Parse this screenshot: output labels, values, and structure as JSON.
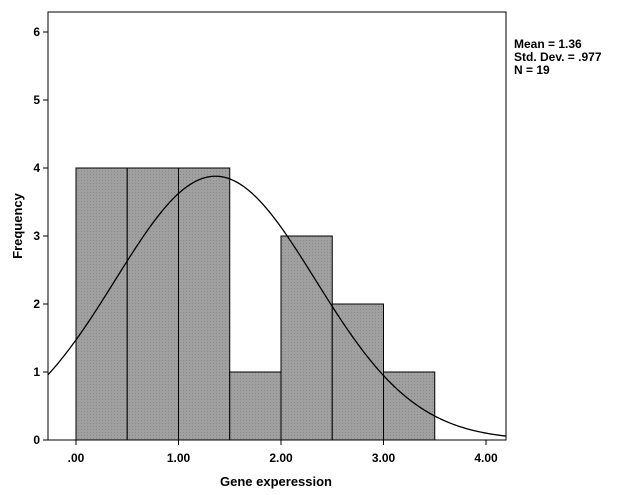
{
  "chart_data": {
    "type": "bar",
    "subtype": "histogram",
    "title": "",
    "xlabel": "Gene experession",
    "ylabel": "Frequency",
    "bins": [
      {
        "start": 0.0,
        "end": 0.5,
        "count": 4
      },
      {
        "start": 0.5,
        "end": 1.0,
        "count": 4
      },
      {
        "start": 1.0,
        "end": 1.5,
        "count": 4
      },
      {
        "start": 1.5,
        "end": 2.0,
        "count": 1
      },
      {
        "start": 2.0,
        "end": 2.5,
        "count": 3
      },
      {
        "start": 2.5,
        "end": 3.0,
        "count": 2
      },
      {
        "start": 3.0,
        "end": 3.5,
        "count": 1
      }
    ],
    "x_ticks": [
      {
        "value": 0,
        "label": ".00"
      },
      {
        "value": 1,
        "label": "1.00"
      },
      {
        "value": 2,
        "label": "2.00"
      },
      {
        "value": 3,
        "label": "3.00"
      },
      {
        "value": 4,
        "label": "4.00"
      }
    ],
    "y_ticks": [
      0,
      1,
      2,
      3,
      4,
      5,
      6
    ],
    "xlim": [
      -0.28,
      4.2
    ],
    "ylim": [
      0,
      6.3
    ],
    "normal_curve": {
      "mean": 1.36,
      "sd": 0.977,
      "n": 19,
      "bin_width": 0.5
    },
    "stats": {
      "mean": "Mean = 1.36",
      "std_dev": "Std. Dev. = .977",
      "n": "N = 19"
    },
    "colors": {
      "bar_fill": "#a0a0a0",
      "bar_stroke": "#000000",
      "curve": "#000000"
    },
    "grid": false,
    "legend": "none"
  }
}
